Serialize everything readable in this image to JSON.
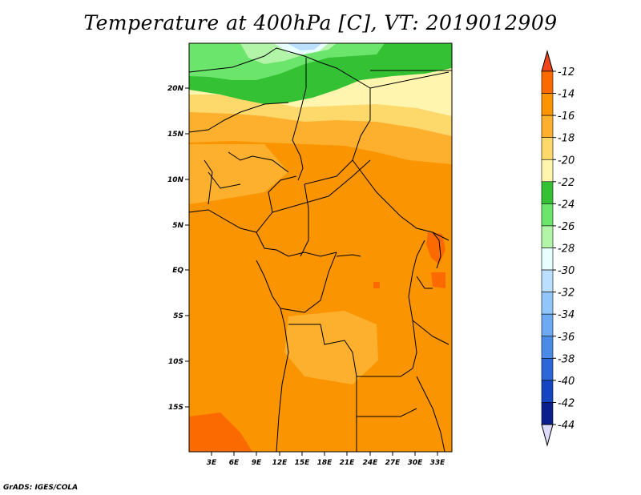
{
  "title": "Temperature at 400hPa [C], VT: 2019012909",
  "credit": "GrADS: IGES/COLA",
  "map": {
    "lat_labels": [
      "20N",
      "15N",
      "10N",
      "5N",
      "EQ",
      "5S",
      "10S",
      "15S"
    ],
    "lon_labels": [
      "3E",
      "6E",
      "9E",
      "12E",
      "15E",
      "18E",
      "21E",
      "24E",
      "27E",
      "30E",
      "33E"
    ]
  },
  "colorbar": {
    "labels": [
      "-12",
      "-14",
      "-16",
      "-18",
      "-20",
      "-22",
      "-24",
      "-26",
      "-28",
      "-30",
      "-32",
      "-34",
      "-36",
      "-38",
      "-40",
      "-42",
      "-44"
    ],
    "colors": {
      "top_arrow": "#f0441b",
      "bins": [
        "#fa6a00",
        "#fa9400",
        "#fcb02e",
        "#fdd86a",
        "#fff5ae",
        "#34c234",
        "#6be56b",
        "#b3f5a8",
        "#e8ffff",
        "#bbe0ff",
        "#91c6fb",
        "#6eaaf3",
        "#4b8be8",
        "#2c66d8",
        "#1545c0",
        "#0a1e8c"
      ],
      "bottom_arrow": "#dcdcfa"
    }
  }
}
